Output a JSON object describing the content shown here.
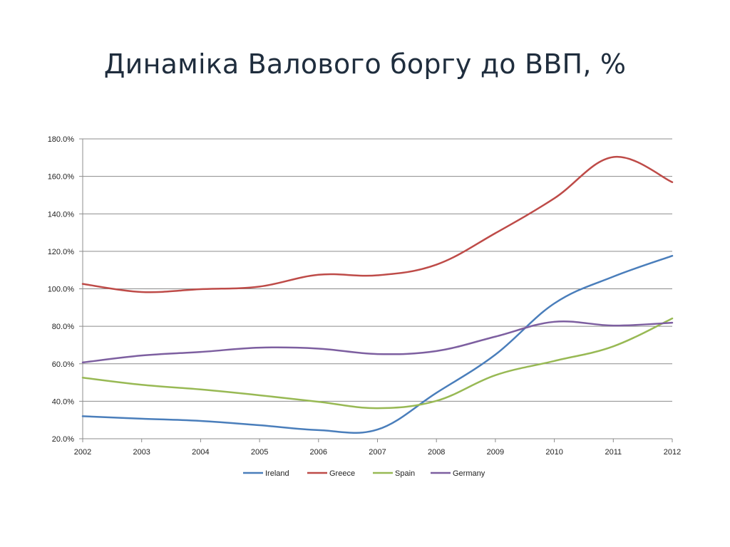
{
  "slide": {
    "title": "Динаміка Валового боргу до ВВП, %"
  },
  "chart_data": {
    "type": "line",
    "title": "",
    "xlabel": "",
    "ylabel": "",
    "x": [
      "2002",
      "2003",
      "2004",
      "2005",
      "2006",
      "2007",
      "2008",
      "2009",
      "2010",
      "2011",
      "2012"
    ],
    "ylim": [
      20,
      180
    ],
    "y_ticks": [
      20,
      40,
      60,
      80,
      100,
      120,
      140,
      160,
      180
    ],
    "y_tick_labels": [
      "20.0%",
      "40.0%",
      "60.0%",
      "80.0%",
      "100.0%",
      "120.0%",
      "140.0%",
      "160.0%",
      "180.0%"
    ],
    "grid": true,
    "legend_position": "bottom",
    "smooth": true,
    "series": [
      {
        "name": "Ireland",
        "color": "#4a7ebb",
        "values": [
          32.0,
          30.7,
          29.5,
          27.2,
          24.6,
          24.9,
          44.5,
          64.9,
          92.2,
          106.5,
          117.6
        ]
      },
      {
        "name": "Greece",
        "color": "#be4b48",
        "values": [
          102.6,
          98.3,
          99.8,
          101.2,
          107.5,
          107.2,
          112.9,
          129.7,
          148.3,
          170.3,
          156.9
        ]
      },
      {
        "name": "Spain",
        "color": "#98b954",
        "values": [
          52.6,
          48.8,
          46.3,
          43.2,
          39.7,
          36.3,
          40.2,
          53.9,
          61.5,
          69.3,
          84.2
        ]
      },
      {
        "name": "Germany",
        "color": "#7d5fa0",
        "values": [
          60.7,
          64.4,
          66.3,
          68.6,
          68.1,
          65.2,
          66.8,
          74.5,
          82.4,
          80.4,
          81.9
        ]
      }
    ]
  }
}
